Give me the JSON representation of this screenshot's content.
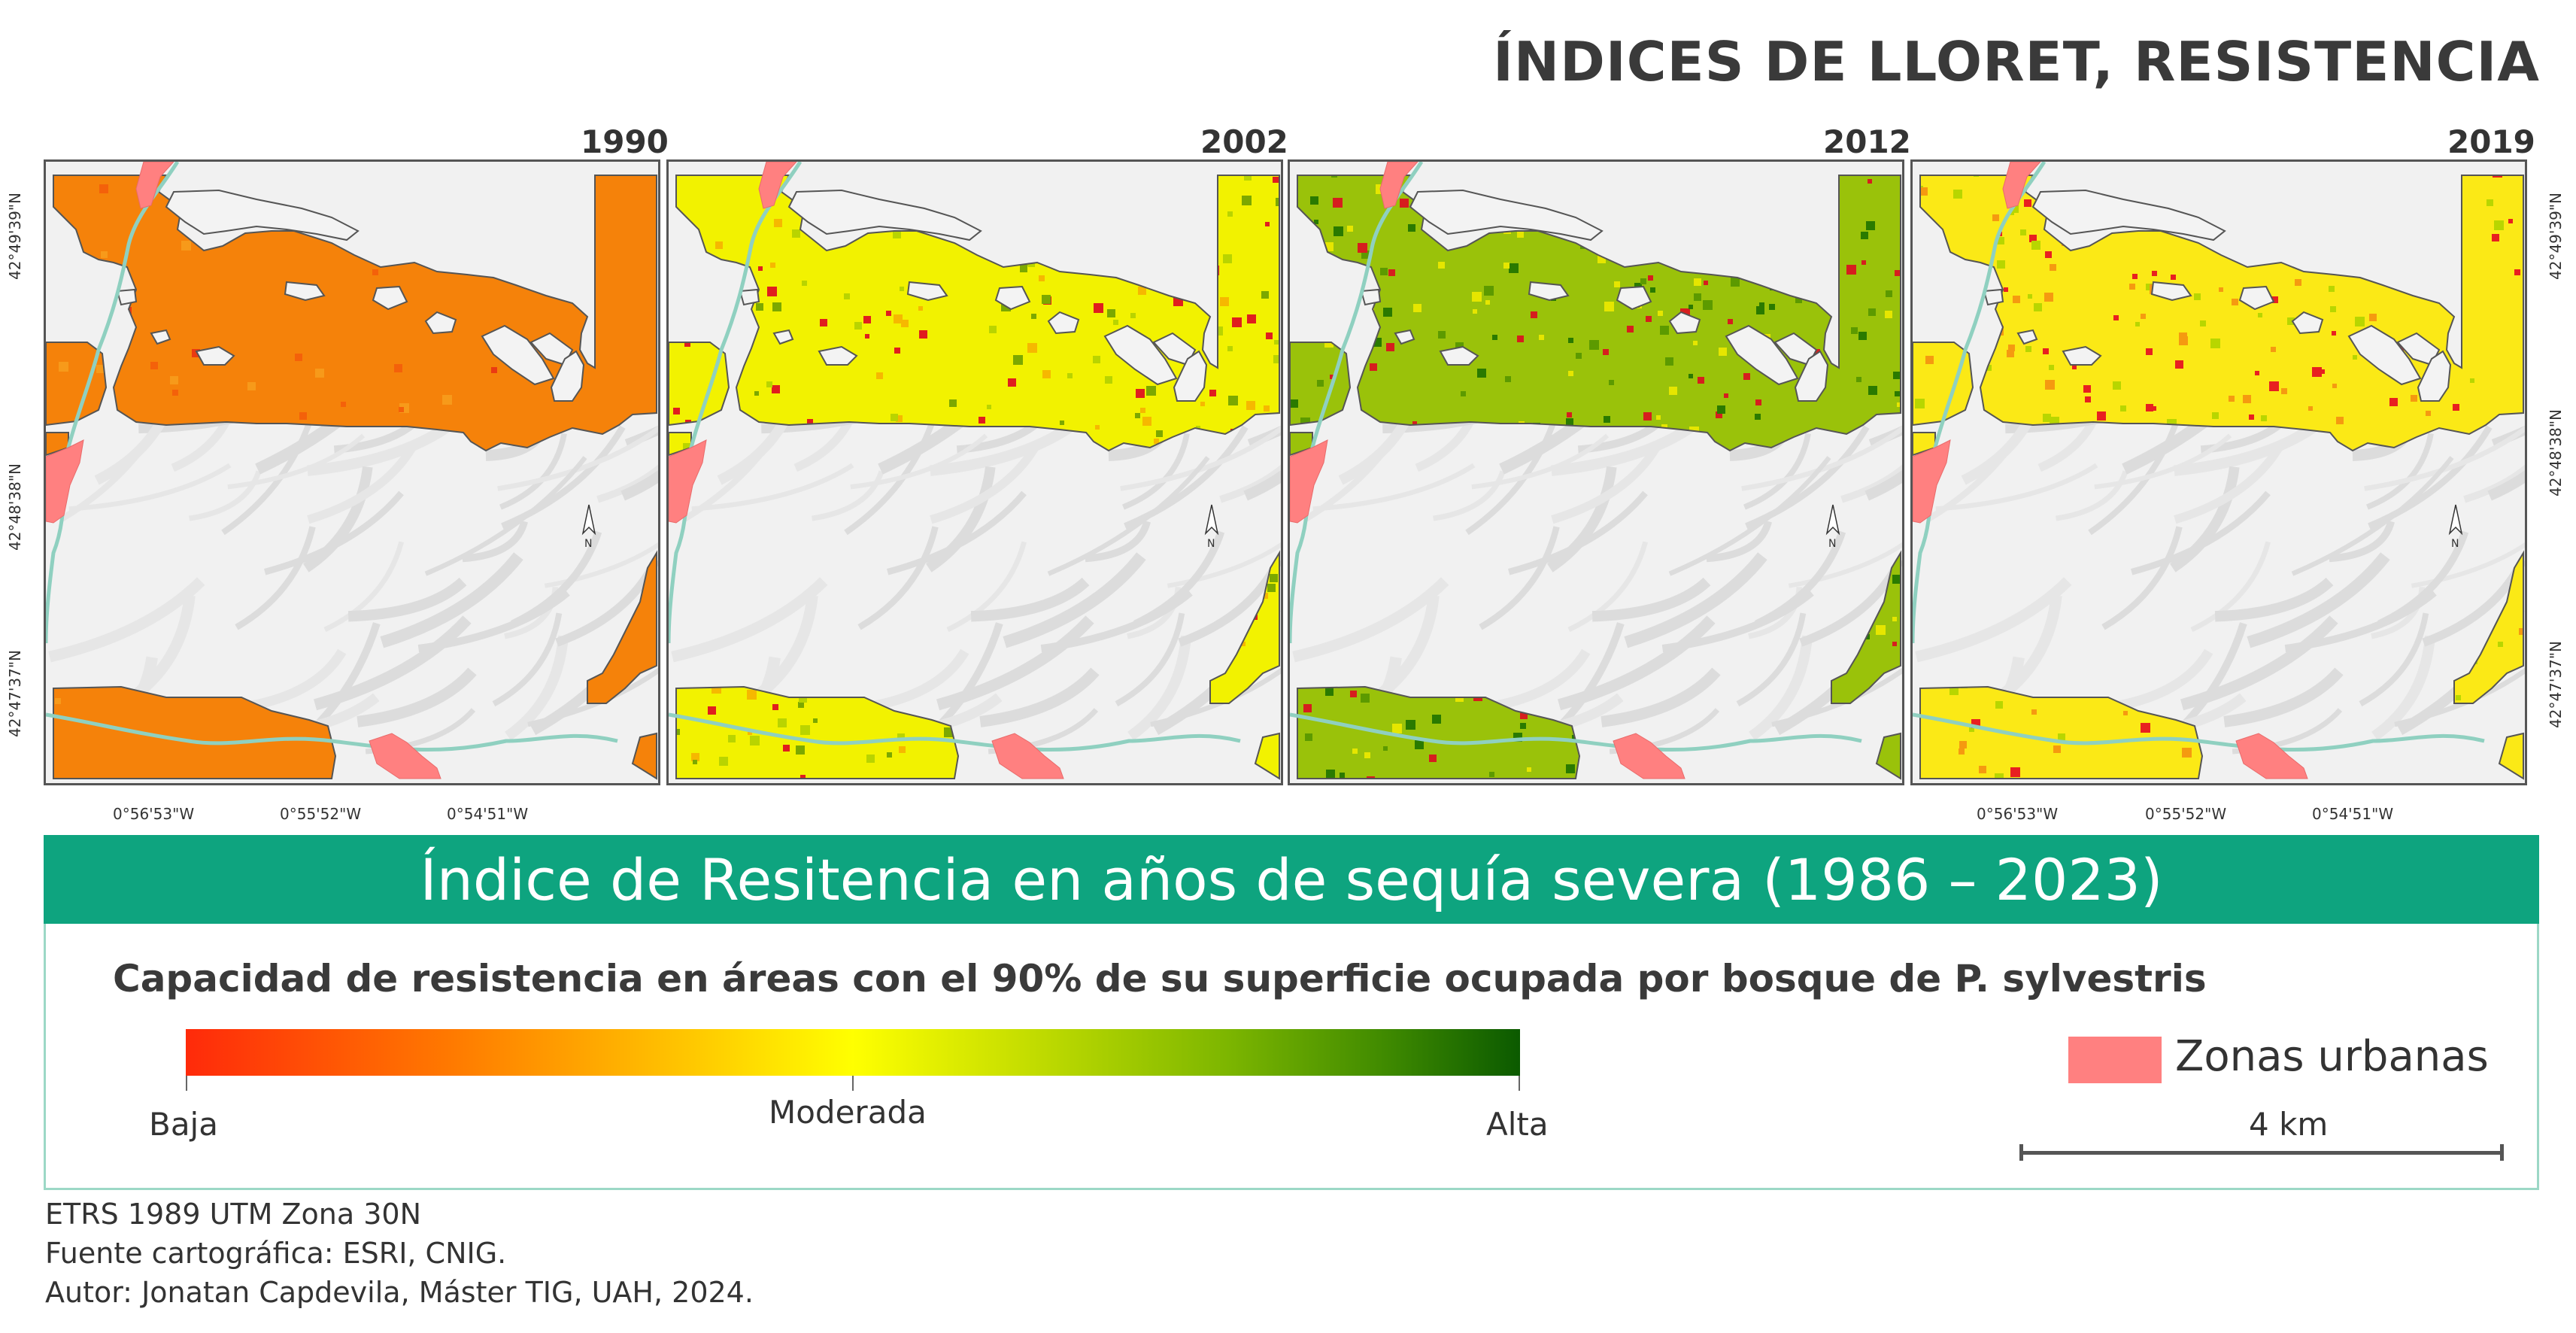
{
  "title": "ÍNDICES DE LLORET, RESISTENCIA",
  "panels": [
    {
      "year": "1990",
      "fill": "#f5820a",
      "speckle": [
        "#f4610a",
        "#ea3a12",
        "#f79a1a"
      ]
    },
    {
      "year": "2002",
      "fill": "#f2f200",
      "speckle": [
        "#e01e1e",
        "#b9d400",
        "#f6b800",
        "#7ca800"
      ]
    },
    {
      "year": "2012",
      "fill": "#9ac20a",
      "speckle": [
        "#2a7a00",
        "#d61e1e",
        "#e6e600",
        "#5c9a00"
      ]
    },
    {
      "year": "2019",
      "fill": "#fbe916",
      "speckle": [
        "#e82020",
        "#f59a10",
        "#b8d600"
      ]
    }
  ],
  "coords": {
    "lat": [
      "42°49'39\"N",
      "42°48'38\"N",
      "42°47'37\"N"
    ],
    "lon": [
      "0°56'53\"W",
      "0°55'52\"W",
      "0°54'51\"W"
    ]
  },
  "north_label": "N",
  "banner": "Índice de Resitencia en años de sequía severa (1986 – 2023)",
  "legend": {
    "subtitle": "Capacidad de resistencia en áreas con el 90% de su superficie ocupada por bosque de P. sylvestris",
    "low": "Baja",
    "mid": "Moderada",
    "high": "Alta",
    "urban": "Zonas urbanas",
    "urban_color": "#ff8080",
    "scale": "4 km"
  },
  "credits": [
    "ETRS 1989 UTM Zona 30N",
    "Fuente cartográfica: ESRI, CNIG.",
    "Autor:  Jonatan Capdevila, Máster TIG, UAH, 2024."
  ]
}
